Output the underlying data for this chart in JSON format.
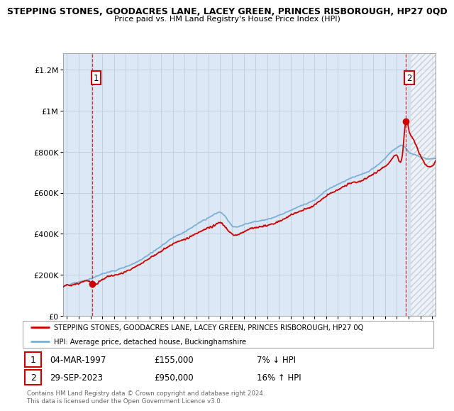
{
  "title": "STEPPING STONES, GOODACRES LANE, LACEY GREEN, PRINCES RISBOROUGH, HP27 0QD",
  "subtitle": "Price paid vs. HM Land Registry's House Price Index (HPI)",
  "ylabel_ticks": [
    "£0",
    "£200K",
    "£400K",
    "£600K",
    "£800K",
    "£1M",
    "£1.2M"
  ],
  "ytick_values": [
    0,
    200000,
    400000,
    600000,
    800000,
    1000000,
    1200000
  ],
  "ylim": [
    0,
    1280000
  ],
  "xlim_start": 1994.7,
  "xlim_end": 2026.3,
  "sale1_year": 1997.17,
  "sale1_price": 155000,
  "sale2_year": 2023.75,
  "sale2_price": 950000,
  "annotation1_date": "04-MAR-1997",
  "annotation1_price": "£155,000",
  "annotation1_hpi": "7% ↓ HPI",
  "annotation2_date": "29-SEP-2023",
  "annotation2_price": "£950,000",
  "annotation2_hpi": "16% ↑ HPI",
  "legend_red": "STEPPING STONES, GOODACRES LANE, LACEY GREEN, PRINCES RISBOROUGH, HP27 0Q",
  "legend_blue": "HPI: Average price, detached house, Buckinghamshire",
  "footer": "Contains HM Land Registry data © Crown copyright and database right 2024.\nThis data is licensed under the Open Government Licence v3.0.",
  "red_color": "#cc0000",
  "blue_color": "#7ab0d4",
  "bg_color": "#dce8f5",
  "hatch_bg": "#e8e8e8",
  "grid_color": "#b8c8d8"
}
